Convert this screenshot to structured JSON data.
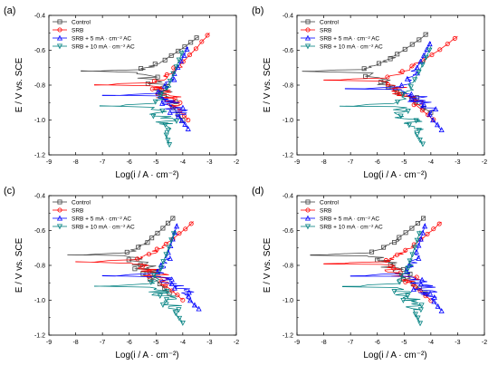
{
  "figure": {
    "panels": [
      "(a)",
      "(b)",
      "(c)",
      "(d)"
    ]
  },
  "chart_data": [
    {
      "type": "line",
      "panel_label": "(a)",
      "xlabel": "Log(i / A · cm⁻²)",
      "ylabel": "E / V vs. SCE",
      "xlim": [
        -9,
        -2
      ],
      "ylim": [
        -1.2,
        -0.4
      ],
      "xticks": [
        "-9",
        "-8",
        "-7",
        "-6",
        "-5",
        "-4",
        "-3",
        "-2"
      ],
      "yticks": [
        "-1.2",
        "-1.0",
        "-0.8",
        "-0.6",
        "-0.4"
      ],
      "legend": "top-left",
      "series": [
        {
          "name": "Control",
          "color": "#444444",
          "marker": "square",
          "ecorr": -0.72,
          "icorr_log": -5.8,
          "x_end_anodic": -3.4,
          "y_end_anodic": -0.52,
          "x_end_cathodic": -3.8,
          "y_end_cathodic": -1.0
        },
        {
          "name": "SRB",
          "color": "#ff0000",
          "marker": "circle",
          "ecorr": -0.8,
          "icorr_log": -5.3,
          "x_end_anodic": -3.0,
          "y_end_anodic": -0.5,
          "x_end_cathodic": -3.6,
          "y_end_cathodic": -1.0
        },
        {
          "name": "SRB + 5 mA · cm⁻² AC",
          "color": "#0000ff",
          "marker": "triangle-up",
          "ecorr": -0.86,
          "icorr_log": -5.0,
          "x_end_anodic": -3.8,
          "y_end_anodic": -0.58,
          "x_end_cathodic": -3.6,
          "y_end_cathodic": -1.05
        },
        {
          "name": "SRB + 10 mA · cm⁻² AC",
          "color": "#008080",
          "marker": "triangle-down",
          "ecorr": -0.92,
          "icorr_log": -5.1,
          "x_end_anodic": -4.0,
          "y_end_anodic": -0.6,
          "x_end_cathodic": -4.3,
          "y_end_cathodic": -1.14
        }
      ]
    },
    {
      "type": "line",
      "panel_label": "(b)",
      "xlabel": "Log(i / A · cm⁻²)",
      "ylabel": "E / V vs. SCE",
      "xlim": [
        -9,
        -2
      ],
      "ylim": [
        -1.2,
        -0.4
      ],
      "xticks": [
        "-9",
        "-8",
        "-7",
        "-6",
        "-5",
        "-4",
        "-3",
        "-2"
      ],
      "yticks": [
        "-1.2",
        "-1.0",
        "-0.8",
        "-0.6",
        "-0.4"
      ],
      "legend": "top-left",
      "series": [
        {
          "name": "Control",
          "color": "#444444",
          "marker": "square",
          "ecorr": -0.72,
          "icorr_log": -6.8,
          "x_end_anodic": -4.1,
          "y_end_anodic": -0.5,
          "x_end_cathodic": -3.8,
          "y_end_cathodic": -0.96
        },
        {
          "name": "SRB",
          "color": "#ff0000",
          "marker": "circle",
          "ecorr": -0.77,
          "icorr_log": -6.0,
          "x_end_anodic": -3.0,
          "y_end_anodic": -0.52,
          "x_end_cathodic": -3.7,
          "y_end_cathodic": -1.0
        },
        {
          "name": "SRB + 5 mA · cm⁻² AC",
          "color": "#0000ff",
          "marker": "triangle-up",
          "ecorr": -0.82,
          "icorr_log": -5.2,
          "x_end_anodic": -4.0,
          "y_end_anodic": -0.55,
          "x_end_cathodic": -3.4,
          "y_end_cathodic": -1.06
        },
        {
          "name": "SRB + 10 mA · cm⁻² AC",
          "color": "#008080",
          "marker": "triangle-down",
          "ecorr": -0.92,
          "icorr_log": -5.4,
          "x_end_anodic": -4.0,
          "y_end_anodic": -0.58,
          "x_end_cathodic": -4.1,
          "y_end_cathodic": -1.14
        }
      ]
    },
    {
      "type": "line",
      "panel_label": "(c)",
      "xlabel": "Log(i / A · cm⁻²)",
      "ylabel": "E / V vs. SCE",
      "xlim": [
        -9,
        -2
      ],
      "ylim": [
        -1.2,
        -0.4
      ],
      "xticks": [
        "-9",
        "-8",
        "-7",
        "-6",
        "-5",
        "-4",
        "-3",
        "-2"
      ],
      "yticks": [
        "-1.2",
        "-1.0",
        "-0.8",
        "-0.6",
        "-0.4"
      ],
      "legend": "top-left",
      "series": [
        {
          "name": "Control",
          "color": "#444444",
          "marker": "square",
          "ecorr": -0.74,
          "icorr_log": -6.3,
          "x_end_anodic": -4.3,
          "y_end_anodic": -0.52,
          "x_end_cathodic": -4.3,
          "y_end_cathodic": -0.96
        },
        {
          "name": "SRB",
          "color": "#ff0000",
          "marker": "circle",
          "ecorr": -0.78,
          "icorr_log": -6.0,
          "x_end_anodic": -3.6,
          "y_end_anodic": -0.55,
          "x_end_cathodic": -3.8,
          "y_end_cathodic": -1.0
        },
        {
          "name": "SRB + 5 mA · cm⁻² AC",
          "color": "#0000ff",
          "marker": "triangle-up",
          "ecorr": -0.86,
          "icorr_log": -5.0,
          "x_end_anodic": -4.2,
          "y_end_anodic": -0.56,
          "x_end_cathodic": -3.2,
          "y_end_cathodic": -1.05
        },
        {
          "name": "SRB + 10 mA · cm⁻² AC",
          "color": "#008080",
          "marker": "triangle-down",
          "ecorr": -0.92,
          "icorr_log": -5.3,
          "x_end_anodic": -4.3,
          "y_end_anodic": -0.6,
          "x_end_cathodic": -3.8,
          "y_end_cathodic": -1.13
        }
      ]
    },
    {
      "type": "line",
      "panel_label": "(d)",
      "xlabel": "Log(i / A · cm⁻²)",
      "ylabel": "E / V vs. SCE",
      "xlim": [
        -9,
        -2
      ],
      "ylim": [
        -1.2,
        -0.4
      ],
      "xticks": [
        "-9",
        "-8",
        "-7",
        "-6",
        "-5",
        "-4",
        "-3",
        "-2"
      ],
      "yticks": [
        "-1.2",
        "-1.0",
        "-0.8",
        "-0.6",
        "-0.4"
      ],
      "legend": "top-left",
      "series": [
        {
          "name": "Control",
          "color": "#444444",
          "marker": "square",
          "ecorr": -0.74,
          "icorr_log": -6.5,
          "x_end_anodic": -4.2,
          "y_end_anodic": -0.52,
          "x_end_cathodic": -4.0,
          "y_end_cathodic": -0.96
        },
        {
          "name": "SRB",
          "color": "#ff0000",
          "marker": "circle",
          "ecorr": -0.79,
          "icorr_log": -6.0,
          "x_end_anodic": -3.6,
          "y_end_anodic": -0.55,
          "x_end_cathodic": -3.8,
          "y_end_cathodic": -1.0
        },
        {
          "name": "SRB + 5 mA · cm⁻² AC",
          "color": "#0000ff",
          "marker": "triangle-up",
          "ecorr": -0.86,
          "icorr_log": -5.0,
          "x_end_anodic": -4.2,
          "y_end_anodic": -0.56,
          "x_end_cathodic": -3.4,
          "y_end_cathodic": -1.06
        },
        {
          "name": "SRB + 10 mA · cm⁻² AC",
          "color": "#008080",
          "marker": "triangle-down",
          "ecorr": -0.92,
          "icorr_log": -5.3,
          "x_end_anodic": -4.4,
          "y_end_anodic": -0.6,
          "x_end_cathodic": -4.2,
          "y_end_cathodic": -1.13
        }
      ]
    }
  ]
}
